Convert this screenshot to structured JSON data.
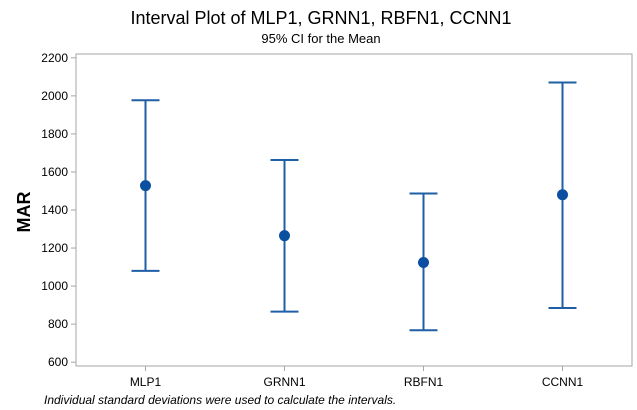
{
  "chart_data": {
    "type": "interval",
    "title": "Interval Plot of MLP1, GRNN1, RBFN1, CCNN1",
    "subtitle": "95% CI for the Mean",
    "ylabel": "MAR",
    "xlabel": "",
    "ylim": [
      580,
      2220
    ],
    "yticks": [
      600,
      800,
      1000,
      1200,
      1400,
      1600,
      1800,
      2000,
      2200
    ],
    "categories": [
      "MLP1",
      "GRNN1",
      "RBFN1",
      "CCNN1"
    ],
    "mean": [
      1528,
      1265,
      1124,
      1480
    ],
    "lower": [
      1080,
      866,
      768,
      885
    ],
    "upper": [
      1977,
      1663,
      1487,
      2070
    ],
    "grid": false,
    "legend": "none",
    "colors": {
      "interval": "#1f5fa6",
      "mean_marker": "#0b4fa0",
      "frame": "#a6a6a6"
    }
  },
  "footnote": "Individual standard deviations were used to calculate the intervals."
}
